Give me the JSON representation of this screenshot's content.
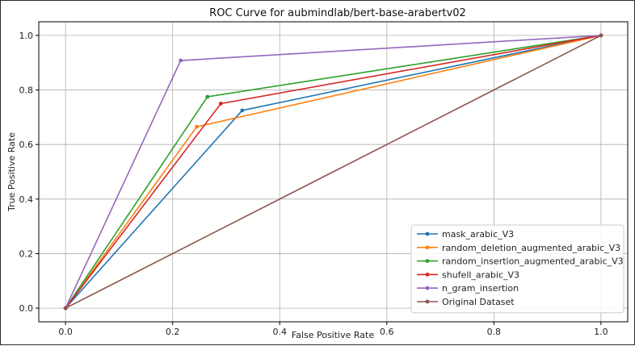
{
  "chart_data": {
    "type": "line",
    "title": "ROC Curve for aubmindlab/bert-base-arabertv02",
    "xlabel": "False Positive Rate",
    "ylabel": "True Positive Rate",
    "xlim": [
      -0.05,
      1.05
    ],
    "ylim": [
      -0.05,
      1.05
    ],
    "xticks": [
      "0.0",
      "0.2",
      "0.4",
      "0.6",
      "0.8",
      "1.0"
    ],
    "yticks": [
      "0.0",
      "0.2",
      "0.4",
      "0.6",
      "0.8",
      "1.0"
    ],
    "grid": true,
    "legend_position": "lower-right",
    "series": [
      {
        "name": "mask_arabic_V3",
        "color": "#1f77b4",
        "x": [
          0.0,
          0.33,
          1.0
        ],
        "y": [
          0.0,
          0.725,
          1.0
        ]
      },
      {
        "name": "random_deletion_augmented_arabic_V3",
        "color": "#ff7f0e",
        "x": [
          0.0,
          0.245,
          1.0
        ],
        "y": [
          0.0,
          0.665,
          1.0
        ]
      },
      {
        "name": "random_insertion_augmented_arabic_V3",
        "color": "#2ca02c",
        "x": [
          0.0,
          0.265,
          1.0
        ],
        "y": [
          0.0,
          0.775,
          1.0
        ]
      },
      {
        "name": "shufell_arabic_V3",
        "color": "#d62728",
        "x": [
          0.0,
          0.29,
          1.0
        ],
        "y": [
          0.0,
          0.75,
          1.0
        ]
      },
      {
        "name": "n_gram_insertion",
        "color": "#9467bd",
        "x": [
          0.0,
          0.215,
          1.0
        ],
        "y": [
          0.0,
          0.908,
          1.0
        ]
      },
      {
        "name": "Original Dataset",
        "color": "#8c564b",
        "x": [
          0.0,
          1.0
        ],
        "y": [
          0.0,
          1.0
        ]
      }
    ]
  }
}
